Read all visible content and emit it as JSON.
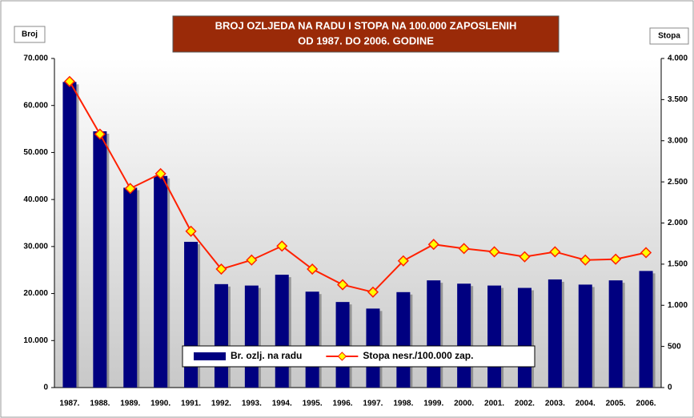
{
  "chart_data": {
    "type": "bar-line",
    "title": "BROJ OZLJEDA NA RADU I STOPA NA 100.000 ZAPOSLENIH",
    "subtitle": "OD 1987. DO 2006. GODINE",
    "ylabel": "Broj",
    "y2label": "Stopa",
    "categories": [
      "1987.",
      "1988.",
      "1989.",
      "1990.",
      "1991.",
      "1992.",
      "1993.",
      "1994.",
      "1995.",
      "1996.",
      "1997.",
      "1998.",
      "1999.",
      "2000.",
      "2001.",
      "2002.",
      "2003.",
      "2004.",
      "2005.",
      "2006."
    ],
    "series": [
      {
        "name": "Br. ozlj. na radu",
        "type": "bar",
        "color": "#000080",
        "values": [
          65000,
          54500,
          42500,
          45000,
          31000,
          22000,
          21700,
          24000,
          20400,
          18200,
          16800,
          20300,
          22800,
          22100,
          21700,
          21200,
          23000,
          21900,
          22800,
          24800
        ]
      },
      {
        "name": "Stopa nesr./100.000 zap.",
        "type": "line",
        "axis": "y2",
        "color": "#ff2000",
        "marker_color": "#ffff00",
        "values": [
          3720,
          3080,
          2420,
          2600,
          1900,
          1440,
          1550,
          1720,
          1440,
          1250,
          1160,
          1540,
          1740,
          1690,
          1650,
          1590,
          1650,
          1550,
          1560,
          1640
        ]
      }
    ],
    "ylim": [
      0,
      70000
    ],
    "yticks": [
      0,
      {
        "value": 10000,
        "label": "10.000"
      },
      {
        "value": 20000,
        "label": "20.000"
      },
      {
        "value": 30000,
        "label": "30.000"
      },
      {
        "value": 40000,
        "label": "40.000"
      },
      {
        "value": 50000,
        "label": "50.000"
      },
      {
        "value": 60000,
        "label": "60.000"
      },
      {
        "value": 70000,
        "label": "70.000"
      }
    ],
    "y2lim": [
      0,
      4000
    ],
    "y2ticks": [
      0,
      500,
      {
        "value": 1000,
        "label": "1.000"
      },
      {
        "value": 1500,
        "label": "1.500"
      },
      {
        "value": 2000,
        "label": "2.000"
      },
      {
        "value": 2500,
        "label": "2.500"
      },
      {
        "value": 3000,
        "label": "3.000"
      },
      {
        "value": 3500,
        "label": "3.500"
      },
      {
        "value": 4000,
        "label": "4.000"
      }
    ],
    "grid": false,
    "legend": "bottom"
  }
}
